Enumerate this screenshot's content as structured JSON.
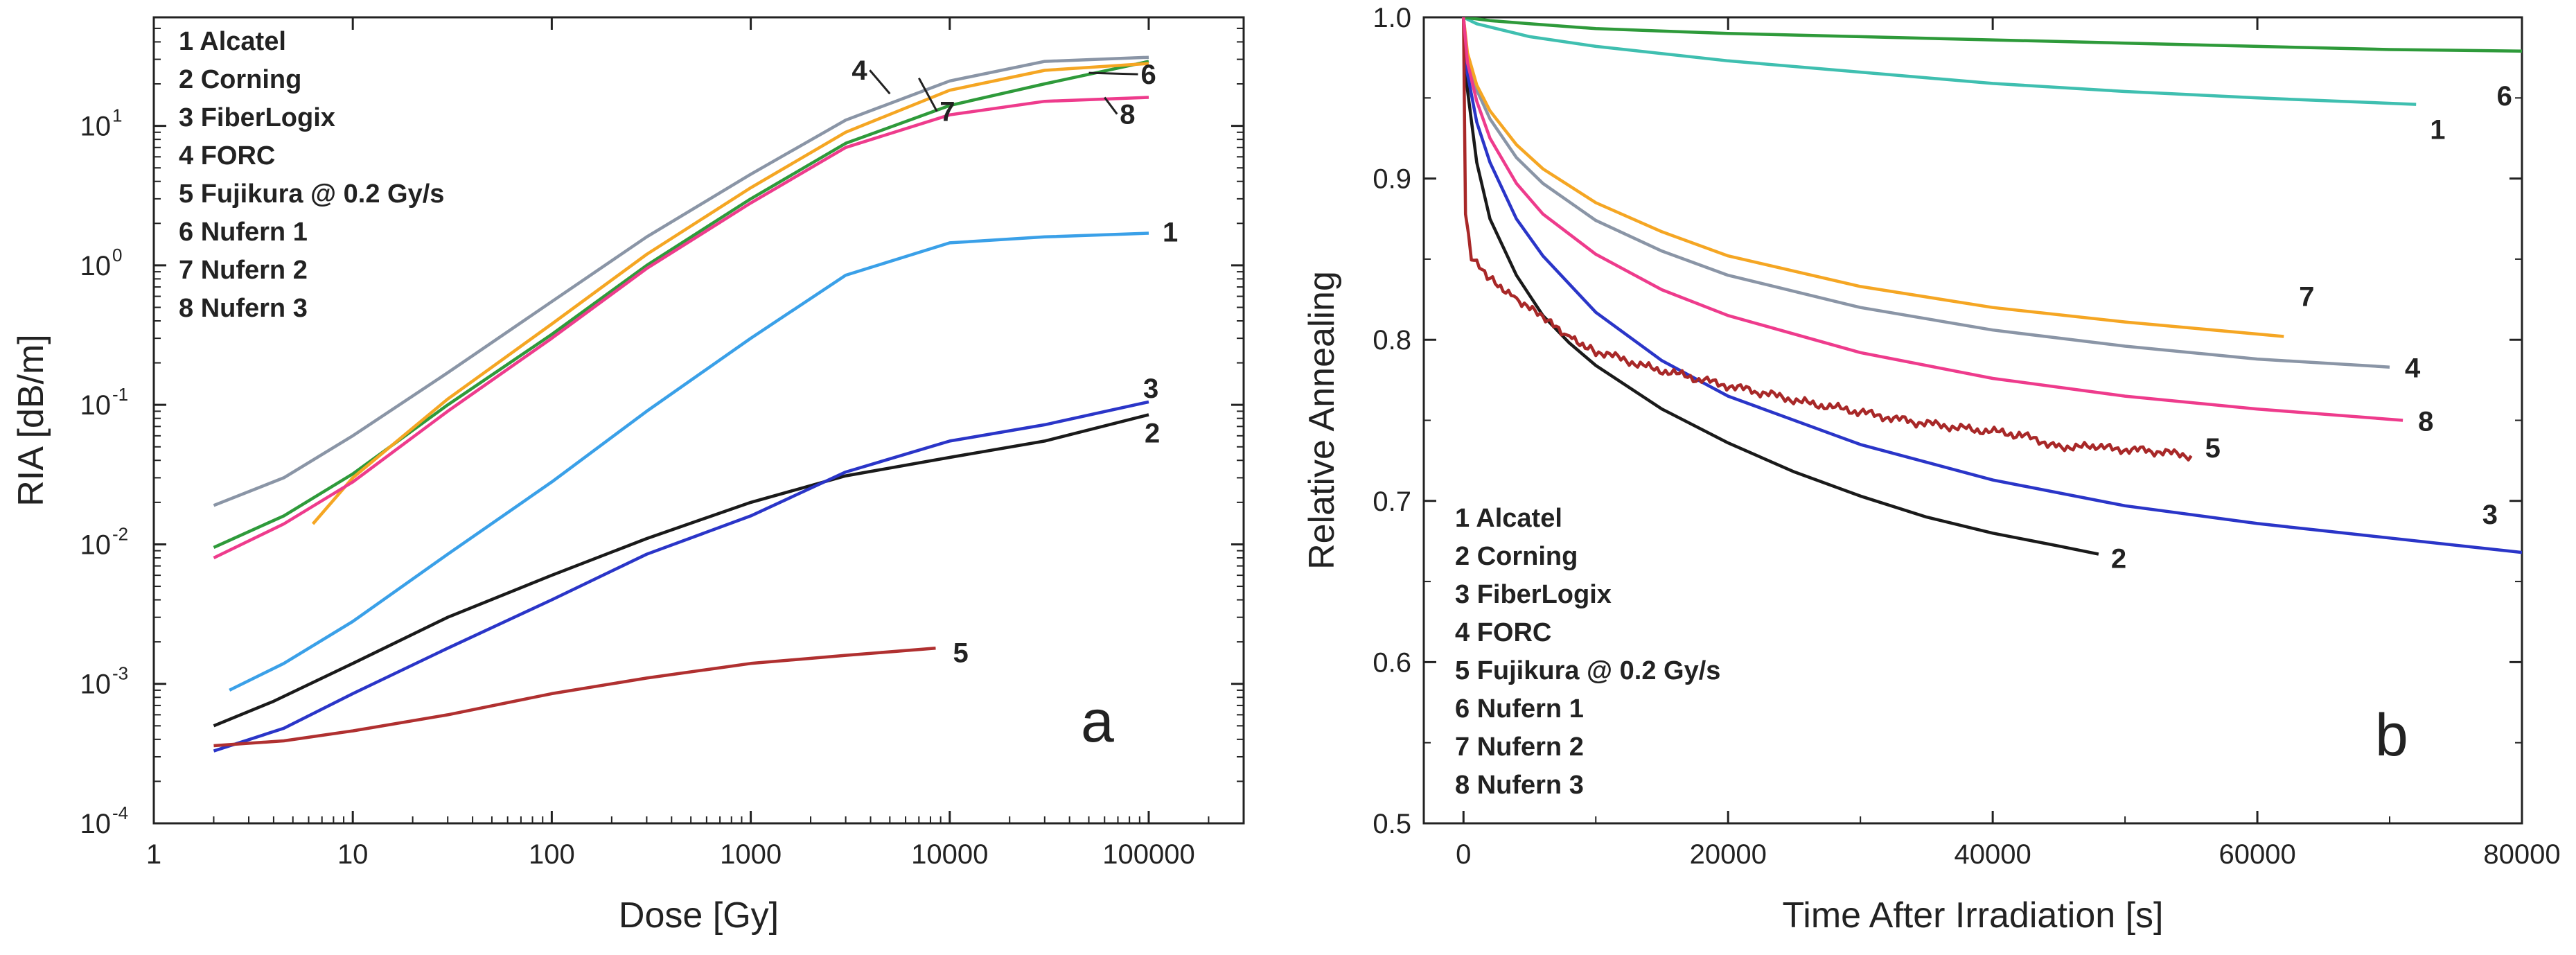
{
  "chart_data": [
    {
      "type": "line",
      "panel_label": "a",
      "xlabel": "Dose [Gy]",
      "ylabel": "RIA [dB/m]",
      "x_scale": "log",
      "y_scale": "log",
      "xlim": [
        1,
        300000
      ],
      "ylim": [
        0.0001,
        60
      ],
      "x_ticks": [
        {
          "value": 1,
          "label": "1"
        },
        {
          "value": 10,
          "label": "10"
        },
        {
          "value": 100,
          "label": "100"
        },
        {
          "value": 1000,
          "label": "1000"
        },
        {
          "value": 10000,
          "label": "10000"
        },
        {
          "value": 100000,
          "label": "100000"
        }
      ],
      "y_ticks": [
        {
          "value": 0.0001,
          "base": "10",
          "exp": "-4"
        },
        {
          "value": 0.001,
          "base": "10",
          "exp": "-3"
        },
        {
          "value": 0.01,
          "base": "10",
          "exp": "-2"
        },
        {
          "value": 0.1,
          "base": "10",
          "exp": "-1"
        },
        {
          "value": 1,
          "base": "10",
          "exp": "0"
        },
        {
          "value": 10,
          "base": "10",
          "exp": "1"
        }
      ],
      "legend": [
        "1 Alcatel",
        "2 Corning",
        "3 FiberLogix",
        "4 FORC",
        "5 Fujikura @ 0.2 Gy/s",
        "6 Nufern 1",
        "7 Nufern 2",
        "8 Nufern 3"
      ],
      "legend_position": "top-left",
      "series": [
        {
          "label": "1",
          "color": "#3aa0e8",
          "points": [
            [
              2.4,
              0.0009
            ],
            [
              4.5,
              0.0014
            ],
            [
              10,
              0.0028
            ],
            [
              30,
              0.0085
            ],
            [
              100,
              0.028
            ],
            [
              300,
              0.09
            ],
            [
              1000,
              0.3
            ],
            [
              3000,
              0.85
            ],
            [
              10000,
              1.45
            ],
            [
              30000,
              1.6
            ],
            [
              100000,
              1.7
            ]
          ],
          "label_at": [
            100000,
            1.7
          ]
        },
        {
          "label": "2",
          "color": "#1a1a1a",
          "points": [
            [
              2,
              0.0005
            ],
            [
              4,
              0.00075
            ],
            [
              10,
              0.0014
            ],
            [
              30,
              0.003
            ],
            [
              100,
              0.006
            ],
            [
              300,
              0.011
            ],
            [
              1000,
              0.02
            ],
            [
              3000,
              0.031
            ],
            [
              10000,
              0.042
            ],
            [
              30000,
              0.055
            ],
            [
              100000,
              0.085
            ]
          ],
          "label_at": [
            100000,
            0.085
          ]
        },
        {
          "label": "3",
          "color": "#2a35c8",
          "points": [
            [
              2,
              0.00033
            ],
            [
              4.5,
              0.00048
            ],
            [
              10,
              0.00085
            ],
            [
              30,
              0.0018
            ],
            [
              100,
              0.004
            ],
            [
              300,
              0.0085
            ],
            [
              1000,
              0.016
            ],
            [
              3000,
              0.033
            ],
            [
              10000,
              0.055
            ],
            [
              30000,
              0.072
            ],
            [
              100000,
              0.105
            ]
          ],
          "label_at": [
            100000,
            0.105
          ]
        },
        {
          "label": "4",
          "color": "#8a95a6",
          "points": [
            [
              2,
              0.019
            ],
            [
              4.5,
              0.03
            ],
            [
              10,
              0.06
            ],
            [
              30,
              0.17
            ],
            [
              100,
              0.55
            ],
            [
              300,
              1.6
            ],
            [
              1000,
              4.5
            ],
            [
              3000,
              11
            ],
            [
              10000,
              21
            ],
            [
              30000,
              29
            ],
            [
              100000,
              31
            ]
          ],
          "label_at": [
            5000,
            17
          ]
        },
        {
          "label": "5",
          "color": "#b03030",
          "points": [
            [
              2,
              0.00036
            ],
            [
              4.5,
              0.00039
            ],
            [
              10,
              0.00046
            ],
            [
              30,
              0.0006
            ],
            [
              100,
              0.00085
            ],
            [
              300,
              0.0011
            ],
            [
              1000,
              0.0014
            ],
            [
              3000,
              0.0016
            ],
            [
              8500,
              0.0018
            ]
          ],
          "label_at": [
            8500,
            0.0018
          ]
        },
        {
          "label": "6",
          "color": "#2e9a3a",
          "points": [
            [
              2,
              0.0095
            ],
            [
              4.5,
              0.016
            ],
            [
              10,
              0.032
            ],
            [
              30,
              0.1
            ],
            [
              100,
              0.32
            ],
            [
              300,
              1
            ],
            [
              1000,
              3
            ],
            [
              3000,
              7.5
            ],
            [
              10000,
              14
            ],
            [
              30000,
              20
            ],
            [
              100000,
              29
            ]
          ],
          "label_at": [
            50000,
            24
          ]
        },
        {
          "label": "7",
          "color": "#f5a623",
          "points": [
            [
              6.3,
              0.014
            ],
            [
              10,
              0.03
            ],
            [
              30,
              0.11
            ],
            [
              100,
              0.38
            ],
            [
              300,
              1.2
            ],
            [
              1000,
              3.6
            ],
            [
              3000,
              9
            ],
            [
              10000,
              18
            ],
            [
              30000,
              25
            ],
            [
              100000,
              28
            ]
          ],
          "label_at": [
            7000,
            22
          ]
        },
        {
          "label": "8",
          "color": "#ee3b8c",
          "points": [
            [
              2,
              0.008
            ],
            [
              4.5,
              0.014
            ],
            [
              10,
              0.028
            ],
            [
              30,
              0.09
            ],
            [
              100,
              0.3
            ],
            [
              300,
              0.95
            ],
            [
              1000,
              2.8
            ],
            [
              3000,
              7
            ],
            [
              10000,
              12
            ],
            [
              30000,
              15
            ],
            [
              100000,
              16
            ]
          ],
          "label_at": [
            60000,
            16
          ]
        }
      ]
    },
    {
      "type": "line",
      "panel_label": "b",
      "xlabel": "Time After Irradiation [s]",
      "ylabel": "Relative Annealing",
      "x_scale": "linear",
      "y_scale": "linear",
      "xlim": [
        -3000,
        80000
      ],
      "ylim": [
        0.5,
        1.0
      ],
      "x_ticks": [
        {
          "value": 0,
          "label": "0"
        },
        {
          "value": 20000,
          "label": "20000"
        },
        {
          "value": 40000,
          "label": "40000"
        },
        {
          "value": 60000,
          "label": "60000"
        },
        {
          "value": 80000,
          "label": "80000"
        }
      ],
      "y_ticks": [
        {
          "value": 0.5,
          "label": "0.5"
        },
        {
          "value": 0.6,
          "label": "0.6"
        },
        {
          "value": 0.7,
          "label": "0.7"
        },
        {
          "value": 0.8,
          "label": "0.8"
        },
        {
          "value": 0.9,
          "label": "0.9"
        },
        {
          "value": 1.0,
          "label": "1.0"
        }
      ],
      "legend": [
        "1 Alcatel",
        "2 Corning",
        "3 FiberLogix",
        "4 FORC",
        "5 Fujikura @ 0.2 Gy/s",
        "6 Nufern 1",
        "7 Nufern 2",
        "8 Nufern 3"
      ],
      "legend_position": "bottom-left",
      "series": [
        {
          "label": "1",
          "color": "#3fbfb0",
          "points": [
            [
              0,
              1.0
            ],
            [
              1000,
              0.996
            ],
            [
              5000,
              0.988
            ],
            [
              10000,
              0.982
            ],
            [
              20000,
              0.973
            ],
            [
              30000,
              0.966
            ],
            [
              40000,
              0.959
            ],
            [
              50000,
              0.954
            ],
            [
              60000,
              0.95
            ],
            [
              72000,
              0.946
            ]
          ],
          "label_at": [
            72000,
            0.946
          ]
        },
        {
          "label": "2",
          "color": "#1a1a1a",
          "points": [
            [
              0,
              1.0
            ],
            [
              300,
              0.955
            ],
            [
              1000,
              0.91
            ],
            [
              2000,
              0.875
            ],
            [
              4000,
              0.84
            ],
            [
              6000,
              0.815
            ],
            [
              8000,
              0.798
            ],
            [
              10000,
              0.784
            ],
            [
              15000,
              0.757
            ],
            [
              20000,
              0.736
            ],
            [
              25000,
              0.718
            ],
            [
              30000,
              0.703
            ],
            [
              35000,
              0.69
            ],
            [
              40000,
              0.68
            ],
            [
              45000,
              0.672
            ],
            [
              48000,
              0.667
            ]
          ],
          "label_at": [
            48000,
            0.667
          ]
        },
        {
          "label": "3",
          "color": "#2a35c8",
          "points": [
            [
              0,
              1.0
            ],
            [
              300,
              0.965
            ],
            [
              1000,
              0.935
            ],
            [
              2000,
              0.91
            ],
            [
              4000,
              0.875
            ],
            [
              6000,
              0.852
            ],
            [
              10000,
              0.817
            ],
            [
              15000,
              0.787
            ],
            [
              20000,
              0.765
            ],
            [
              30000,
              0.735
            ],
            [
              40000,
              0.713
            ],
            [
              50000,
              0.697
            ],
            [
              60000,
              0.686
            ],
            [
              70000,
              0.677
            ],
            [
              80000,
              0.668
            ]
          ],
          "label_at": [
            77000,
            0.69
          ]
        },
        {
          "label": "4",
          "color": "#8a95a6",
          "points": [
            [
              0,
              1.0
            ],
            [
              300,
              0.975
            ],
            [
              1000,
              0.955
            ],
            [
              2000,
              0.937
            ],
            [
              4000,
              0.913
            ],
            [
              6000,
              0.897
            ],
            [
              10000,
              0.874
            ],
            [
              15000,
              0.855
            ],
            [
              20000,
              0.84
            ],
            [
              30000,
              0.82
            ],
            [
              40000,
              0.806
            ],
            [
              50000,
              0.796
            ],
            [
              60000,
              0.788
            ],
            [
              70000,
              0.783
            ]
          ],
          "label_at": [
            70000,
            0.783
          ]
        },
        {
          "label": "5",
          "color": "#a82828",
          "noisy": true,
          "points": [
            [
              0,
              1.0
            ],
            [
              150,
              0.88
            ],
            [
              600,
              0.85
            ],
            [
              2000,
              0.838
            ],
            [
              4000,
              0.826
            ],
            [
              6000,
              0.813
            ],
            [
              8000,
              0.802
            ],
            [
              10000,
              0.793
            ],
            [
              14000,
              0.783
            ],
            [
              18000,
              0.775
            ],
            [
              22000,
              0.768
            ],
            [
              26000,
              0.761
            ],
            [
              30000,
              0.755
            ],
            [
              34000,
              0.749
            ],
            [
              38000,
              0.745
            ],
            [
              42000,
              0.741
            ],
            [
              45000,
              0.734
            ],
            [
              48000,
              0.733
            ],
            [
              52000,
              0.731
            ],
            [
              55000,
              0.728
            ]
          ],
          "label_at": [
            55000,
            0.733
          ]
        },
        {
          "label": "6",
          "color": "#2e9a3a",
          "points": [
            [
              0,
              1.0
            ],
            [
              2000,
              0.998
            ],
            [
              5000,
              0.996
            ],
            [
              10000,
              0.993
            ],
            [
              20000,
              0.99
            ],
            [
              30000,
              0.988
            ],
            [
              40000,
              0.986
            ],
            [
              50000,
              0.984
            ],
            [
              60000,
              0.982
            ],
            [
              70000,
              0.98
            ],
            [
              80000,
              0.979
            ]
          ],
          "label_at": [
            76000,
            0.966
          ]
        },
        {
          "label": "7",
          "color": "#f5a623",
          "points": [
            [
              0,
              1.0
            ],
            [
              300,
              0.978
            ],
            [
              1000,
              0.958
            ],
            [
              2000,
              0.942
            ],
            [
              4000,
              0.921
            ],
            [
              6000,
              0.906
            ],
            [
              10000,
              0.885
            ],
            [
              15000,
              0.867
            ],
            [
              20000,
              0.852
            ],
            [
              30000,
              0.833
            ],
            [
              40000,
              0.82
            ],
            [
              50000,
              0.811
            ],
            [
              62000,
              0.802
            ]
          ],
          "label_at": [
            62000,
            0.815
          ]
        },
        {
          "label": "8",
          "color": "#ee3b8c",
          "points": [
            [
              0,
              1.0
            ],
            [
              300,
              0.972
            ],
            [
              1000,
              0.948
            ],
            [
              2000,
              0.925
            ],
            [
              4000,
              0.897
            ],
            [
              6000,
              0.878
            ],
            [
              10000,
              0.853
            ],
            [
              15000,
              0.831
            ],
            [
              20000,
              0.815
            ],
            [
              30000,
              0.792
            ],
            [
              40000,
              0.776
            ],
            [
              50000,
              0.765
            ],
            [
              60000,
              0.757
            ],
            [
              71000,
              0.75
            ]
          ],
          "label_at": [
            71000,
            0.75
          ]
        }
      ]
    }
  ]
}
